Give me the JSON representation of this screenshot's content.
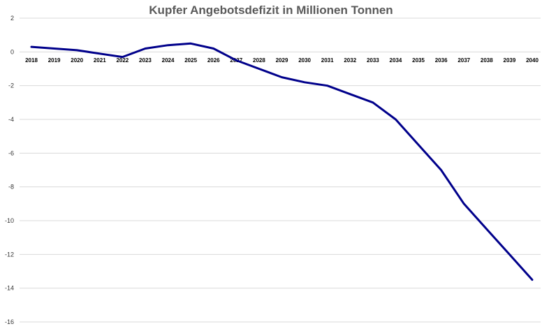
{
  "chart_data": {
    "type": "line",
    "title": "Kupfer Angebotsdefizit in Millionen Tonnen",
    "xlabel": "",
    "ylabel": "",
    "categories": [
      "2018",
      "2019",
      "2020",
      "2021",
      "2022",
      "2023",
      "2024",
      "2025",
      "2026",
      "2027",
      "2028",
      "2029",
      "2030",
      "2031",
      "2032",
      "2033",
      "2034",
      "2035",
      "2036",
      "2037",
      "2038",
      "2039",
      "2040"
    ],
    "series": [
      {
        "name": "",
        "color": "#00008b",
        "values": [
          0.3,
          0.2,
          0.1,
          -0.1,
          -0.3,
          0.2,
          0.4,
          0.5,
          0.2,
          -0.5,
          -1.0,
          -1.5,
          -1.8,
          -2.0,
          -2.5,
          -3.0,
          -4.0,
          -5.5,
          -7.0,
          -9.0,
          -10.5,
          -12.0,
          -13.5
        ]
      }
    ],
    "ylim": [
      -16,
      2
    ],
    "yticks": [
      2,
      0,
      -2,
      -4,
      -6,
      -8,
      -10,
      -12,
      -14,
      -16
    ],
    "grid": true,
    "legend": "none"
  }
}
